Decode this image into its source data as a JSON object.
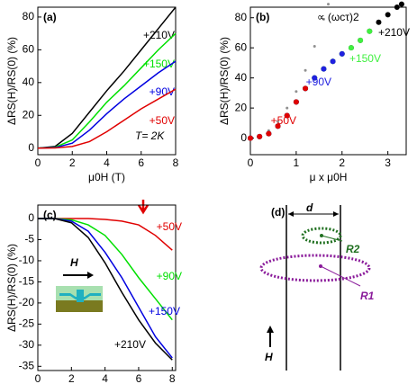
{
  "chart_data": [
    {
      "type": "line",
      "title": "(a)",
      "annotation": "T= 2K",
      "x_label": "μ0H (T)",
      "y_label": "ΔRS(H)/RS(0)  (%)",
      "x": [
        0,
        1,
        2,
        3,
        4,
        5,
        6,
        7,
        8
      ],
      "series": [
        {
          "name": "+210V",
          "color": "#000000",
          "values": [
            0,
            1,
            9,
            22,
            35,
            47,
            60,
            73,
            86
          ]
        },
        {
          "name": "+150V",
          "color": "#00e000",
          "values": [
            0,
            0.5,
            5,
            16,
            28,
            38,
            49,
            60,
            70
          ]
        },
        {
          "name": "+90V",
          "color": "#0000e0",
          "values": [
            0,
            0.3,
            3,
            11,
            21,
            30,
            38,
            46,
            53
          ]
        },
        {
          "name": "+50V",
          "color": "#e00000",
          "values": [
            0,
            0.1,
            1,
            4,
            10,
            17,
            24,
            30,
            36
          ]
        }
      ],
      "xlim": [
        0,
        8
      ],
      "xticks": [
        0,
        2,
        4,
        6,
        8
      ],
      "ylim": [
        -4,
        86
      ],
      "yticks": [
        0,
        20,
        40,
        60,
        80
      ]
    },
    {
      "type": "scatter",
      "title": "(b)",
      "x_label": "μ x μ0H",
      "y_label": "ΔRS(H)/RS(0)  (%)",
      "series": [
        {
          "name": "∝ (ωcτ)2",
          "color": "#909090",
          "dash": true,
          "x": [
            0,
            0.2,
            0.4,
            0.6,
            0.8,
            1.0,
            1.2,
            1.4,
            1.6,
            1.7
          ],
          "values": [
            0,
            1.2,
            5,
            11,
            20,
            31,
            45,
            61,
            79,
            89
          ]
        },
        {
          "name": "+210V",
          "color": "#000000",
          "x": [
            0,
            0.2,
            0.4,
            0.6,
            0.8,
            1.0,
            1.2,
            1.4,
            1.6,
            1.8,
            2.0,
            2.2,
            2.4,
            2.6,
            2.8,
            3.0,
            3.2,
            3.3
          ],
          "values": [
            0,
            1,
            3,
            8,
            15,
            24,
            33,
            40,
            46,
            51,
            56,
            60,
            65,
            71,
            77,
            82,
            87,
            89
          ]
        },
        {
          "name": "+150V",
          "color": "#40f040",
          "x": [
            0,
            0.2,
            0.4,
            0.6,
            0.8,
            1.0,
            1.2,
            1.4,
            1.6,
            1.8,
            2.0,
            2.2,
            2.4,
            2.6
          ],
          "values": [
            0,
            1,
            3,
            8,
            15,
            24,
            33,
            40,
            46,
            51,
            56,
            60,
            65,
            71
          ]
        },
        {
          "name": "+90V",
          "color": "#2020e0",
          "x": [
            0,
            0.2,
            0.4,
            0.6,
            0.8,
            1.0,
            1.2,
            1.4,
            1.6,
            1.8,
            2.0
          ],
          "values": [
            0,
            1,
            3,
            8,
            15,
            24,
            33,
            40,
            46,
            51,
            56
          ]
        },
        {
          "name": "+50V",
          "color": "#e00000",
          "x": [
            0,
            0.2,
            0.4,
            0.6,
            0.8,
            1.0,
            1.2
          ],
          "values": [
            0,
            1,
            3,
            8,
            15,
            24,
            33
          ]
        }
      ],
      "xlim": [
        0,
        3.4
      ],
      "xticks": [
        0,
        1,
        2,
        3
      ],
      "ylim": [
        -11,
        87
      ],
      "yticks": [
        0,
        20,
        40,
        60,
        80
      ]
    },
    {
      "type": "line",
      "title": "(c)",
      "annotation": "H",
      "x_label": "μ0H (T)",
      "y_label": "ΔRS(H)/RS(0)  (%)",
      "x": [
        0,
        1,
        2,
        3,
        4,
        5,
        6,
        7,
        8
      ],
      "series": [
        {
          "name": "+50V",
          "color": "#e00000",
          "values": [
            0,
            0,
            0,
            0,
            -0.2,
            -0.6,
            -1.5,
            -4,
            -7.5
          ]
        },
        {
          "name": "+90V",
          "color": "#00e000",
          "values": [
            0,
            0,
            -0.3,
            -1.5,
            -4,
            -8.5,
            -14,
            -19,
            -24
          ]
        },
        {
          "name": "+150V",
          "color": "#0000e0",
          "values": [
            0,
            0,
            -0.6,
            -3,
            -8,
            -14,
            -21,
            -28,
            -33
          ]
        },
        {
          "name": "+210V",
          "color": "#000000",
          "values": [
            0,
            0,
            -1,
            -4.5,
            -10.5,
            -17.5,
            -24,
            -29.5,
            -33.5
          ]
        }
      ],
      "xlim": [
        0,
        8.2
      ],
      "xticks": [
        0,
        2,
        4,
        6,
        8
      ],
      "ylim": [
        -36,
        3.2
      ],
      "yticks": [
        0,
        -5,
        -10,
        -15,
        -20,
        -25,
        -30,
        -35
      ]
    }
  ],
  "diagram": {
    "title": "(d)",
    "width_label": "d",
    "small_ring": "R2",
    "large_ring": "R1",
    "field": "H"
  }
}
